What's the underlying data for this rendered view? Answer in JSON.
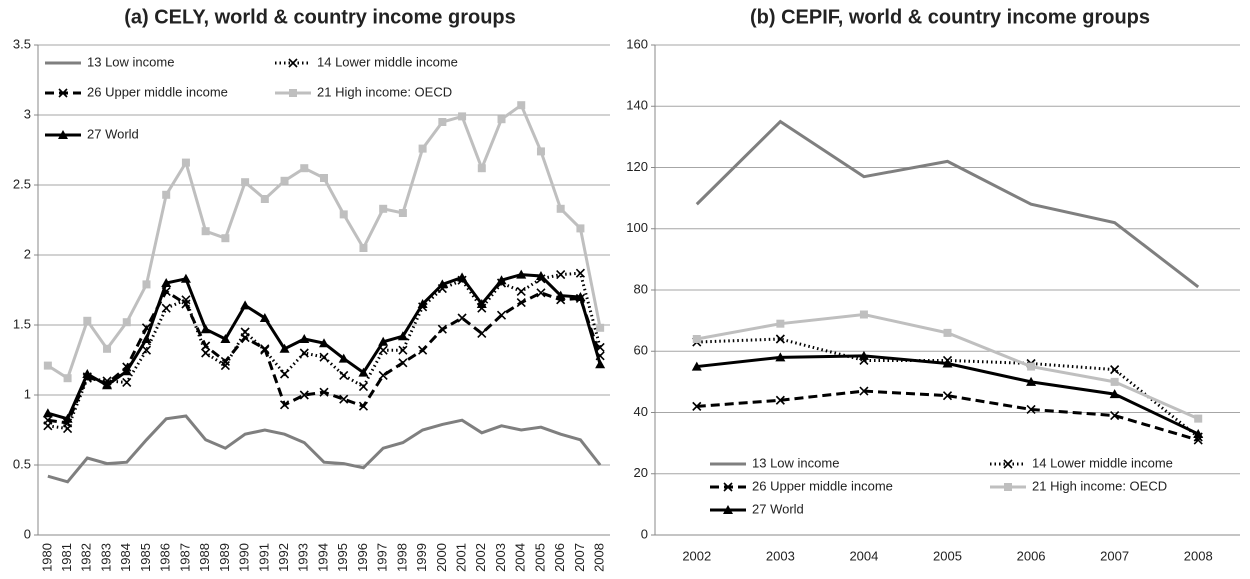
{
  "chart_data": [
    {
      "type": "line",
      "title": "(a) CELY, world & country income groups",
      "categories": [
        "1980",
        "1981",
        "1982",
        "1983",
        "1984",
        "1985",
        "1986",
        "1987",
        "1988",
        "1989",
        "1990",
        "1991",
        "1992",
        "1993",
        "1994",
        "1995",
        "1996",
        "1997",
        "1998",
        "1999",
        "2000",
        "2001",
        "2002",
        "2003",
        "2004",
        "2005",
        "2006",
        "2007",
        "2008"
      ],
      "ylim": [
        0,
        3.5
      ],
      "yticks": [
        0,
        0.5,
        1,
        1.5,
        2,
        2.5,
        3,
        3.5
      ],
      "grid": true,
      "legend": "upper left",
      "x_labels_rotated": true,
      "series": [
        {
          "name": "13 Low income",
          "color": "#7f7f7f",
          "line_style": "solid",
          "marker": "none",
          "values": [
            0.42,
            0.38,
            0.55,
            0.51,
            0.52,
            0.68,
            0.83,
            0.85,
            0.68,
            0.62,
            0.72,
            0.75,
            0.72,
            0.66,
            0.52,
            0.51,
            0.48,
            0.62,
            0.66,
            0.75,
            0.79,
            0.82,
            0.73,
            0.78,
            0.75,
            0.77,
            0.72,
            0.68,
            0.5
          ]
        },
        {
          "name": "14 Lower middle income",
          "color": "#000000",
          "line_style": "dotted",
          "marker": "x",
          "values": [
            0.78,
            0.76,
            1.12,
            1.1,
            1.09,
            1.32,
            1.62,
            1.68,
            1.3,
            1.21,
            1.45,
            1.32,
            1.15,
            1.3,
            1.27,
            1.14,
            1.06,
            1.32,
            1.32,
            1.63,
            1.76,
            1.82,
            1.62,
            1.8,
            1.74,
            1.83,
            1.86,
            1.87,
            1.34
          ]
        },
        {
          "name": "26 Upper middle income",
          "color": "#000000",
          "line_style": "dashed",
          "marker": "x",
          "values": [
            0.82,
            0.8,
            1.13,
            1.08,
            1.2,
            1.48,
            1.74,
            1.65,
            1.35,
            1.24,
            1.41,
            1.33,
            0.93,
            1.0,
            1.02,
            0.97,
            0.92,
            1.14,
            1.23,
            1.32,
            1.47,
            1.55,
            1.44,
            1.57,
            1.66,
            1.73,
            1.68,
            1.69,
            1.28
          ]
        },
        {
          "name": "21 High income: OECD",
          "color": "#bfbfbf",
          "line_style": "solid",
          "marker": "square",
          "values": [
            1.21,
            1.12,
            1.53,
            1.33,
            1.52,
            1.79,
            2.43,
            2.66,
            2.17,
            2.12,
            2.52,
            2.4,
            2.53,
            2.62,
            2.55,
            2.29,
            2.05,
            2.33,
            2.3,
            2.76,
            2.95,
            2.99,
            2.62,
            2.97,
            3.07,
            2.74,
            2.33,
            2.19,
            1.48
          ]
        },
        {
          "name": "27 World",
          "color": "#000000",
          "line_style": "solid",
          "marker": "triangle",
          "values": [
            0.87,
            0.83,
            1.15,
            1.07,
            1.17,
            1.4,
            1.8,
            1.83,
            1.47,
            1.4,
            1.64,
            1.55,
            1.33,
            1.4,
            1.37,
            1.26,
            1.16,
            1.38,
            1.42,
            1.65,
            1.79,
            1.84,
            1.65,
            1.82,
            1.86,
            1.85,
            1.71,
            1.7,
            1.22
          ]
        }
      ]
    },
    {
      "type": "line",
      "title": "(b) CEPIF, world & country income groups",
      "categories": [
        "2002",
        "2003",
        "2004",
        "2005",
        "2006",
        "2007",
        "2008"
      ],
      "ylim": [
        0,
        160
      ],
      "yticks": [
        0,
        20,
        40,
        60,
        80,
        100,
        120,
        140,
        160
      ],
      "grid": true,
      "legend": "lower left",
      "x_labels_rotated": false,
      "series": [
        {
          "name": "13 Low income",
          "color": "#7f7f7f",
          "line_style": "solid",
          "marker": "none",
          "values": [
            108,
            135,
            117,
            122,
            108,
            102,
            81
          ]
        },
        {
          "name": "14 Lower middle income",
          "color": "#000000",
          "line_style": "dotted",
          "marker": "x",
          "values": [
            63,
            64,
            57,
            57,
            56,
            54,
            32
          ]
        },
        {
          "name": "26 Upper middle income",
          "color": "#000000",
          "line_style": "dashed",
          "marker": "x",
          "values": [
            42,
            44,
            47,
            45.5,
            41,
            39,
            31
          ]
        },
        {
          "name": "21 High income: OECD",
          "color": "#bfbfbf",
          "line_style": "solid",
          "marker": "square",
          "values": [
            64,
            69,
            72,
            66,
            55,
            50,
            38
          ]
        },
        {
          "name": "27 World",
          "color": "#000000",
          "line_style": "solid",
          "marker": "triangle",
          "values": [
            55,
            58,
            58.5,
            56,
            50,
            46,
            33
          ]
        }
      ]
    }
  ]
}
